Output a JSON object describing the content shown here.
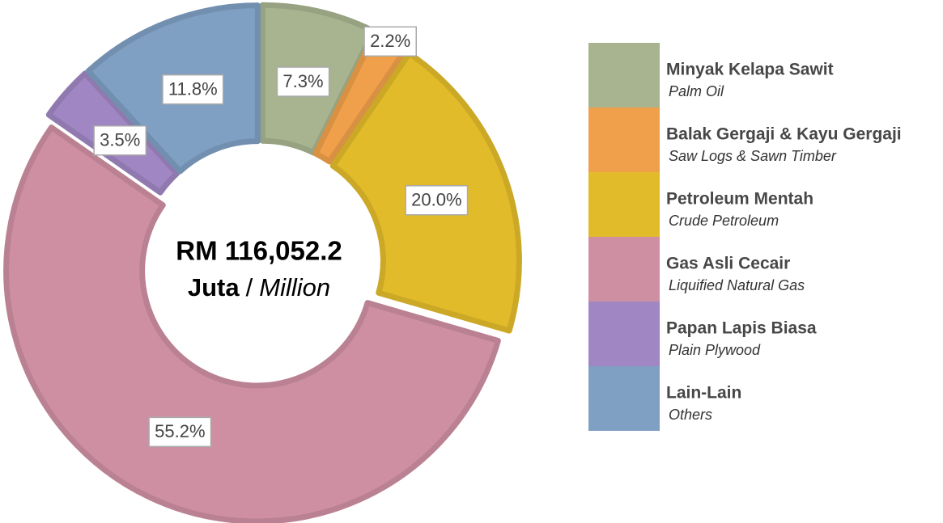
{
  "chart_data": {
    "type": "donut",
    "center_text": {
      "amount": "RM 116,052.2",
      "unit_ms": "Juta",
      "separator": "/",
      "unit_en": "Million"
    },
    "categories": [
      "Minyak Kelapa Sawit",
      "Balak Gergaji & Kayu Gergaji",
      "Petroleum Mentah",
      "Gas Asli Cecair",
      "Papan Lapis Biasa",
      "Lain-Lain"
    ],
    "category_translations": [
      "Palm Oil",
      "Saw Logs & Sawn Timber",
      "Crude Petroleum",
      "Liquified Natural Gas",
      "Plain Plywood",
      "Others"
    ],
    "values": [
      7.3,
      2.2,
      20.0,
      55.2,
      3.5,
      11.8
    ],
    "value_labels": [
      "7.3%",
      "2.2%",
      "20.0%",
      "55.2%",
      "3.5%",
      "11.8%"
    ],
    "colors": [
      "#a7b48f",
      "#f0a04a",
      "#e2bb2a",
      "#cf8fa3",
      "#a086c2",
      "#7f9fc3"
    ],
    "legend": "right"
  }
}
